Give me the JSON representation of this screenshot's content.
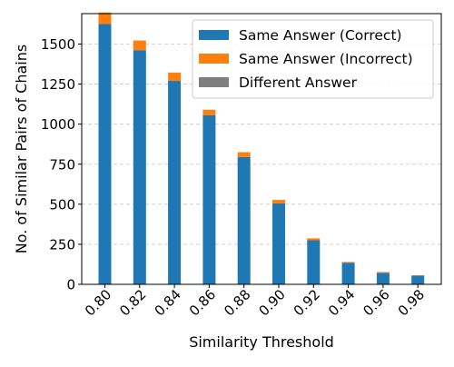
{
  "chart_data": {
    "type": "bar",
    "stacked": true,
    "categories": [
      "0.80",
      "0.82",
      "0.84",
      "0.86",
      "0.88",
      "0.90",
      "0.92",
      "0.94",
      "0.96",
      "0.98"
    ],
    "series": [
      {
        "name": "Same Answer (Correct)",
        "color": "#1f77b4",
        "values": [
          1625,
          1462,
          1270,
          1055,
          795,
          505,
          275,
          135,
          72,
          55
        ]
      },
      {
        "name": "Same Answer (Incorrect)",
        "color": "#ff7f0e",
        "values": [
          72,
          60,
          52,
          35,
          30,
          22,
          12,
          5,
          5,
          2
        ]
      },
      {
        "name": "Different Answer",
        "color": "#7f7f7f",
        "values": [
          0,
          0,
          0,
          0,
          0,
          0,
          0,
          0,
          0,
          0
        ]
      }
    ],
    "xlabel": "Similarity Threshold",
    "ylabel": "No. of Similar Pairs of Chains",
    "ylim": [
      0,
      1690
    ],
    "yticks": [
      0,
      250,
      500,
      750,
      1000,
      1250,
      1500
    ],
    "grid": "y-dashed",
    "legend": "top-right"
  }
}
